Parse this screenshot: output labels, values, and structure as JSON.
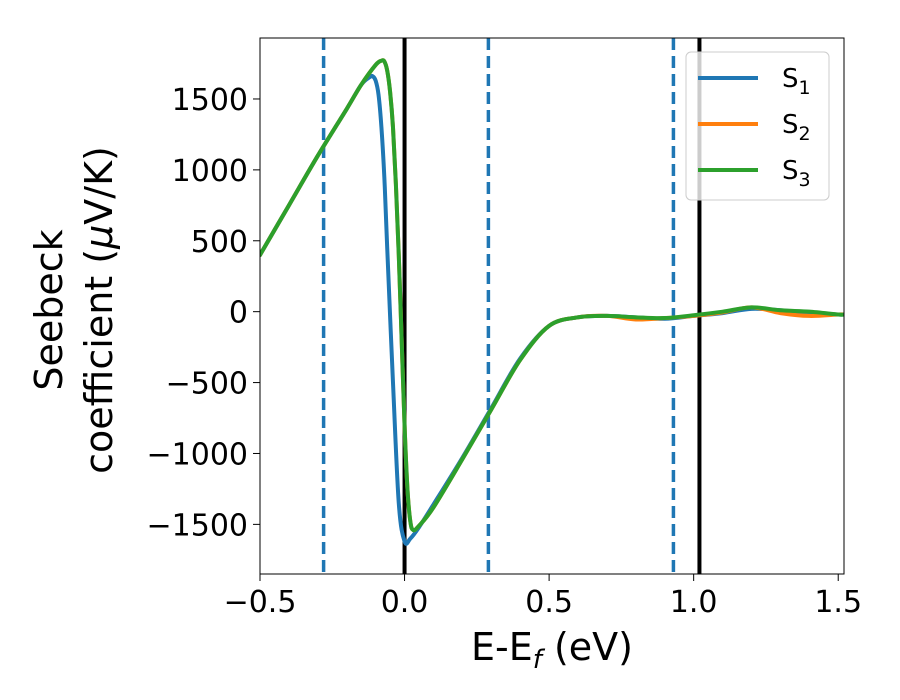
{
  "chart_data": {
    "type": "line",
    "xlabel": "E-E",
    "xlabel_sub": "f",
    "xlabel_suffix": " (eV)",
    "ylabel_line1": "Seebeck",
    "ylabel_line2": "coefficient  (",
    "ylabel_mu": "μ",
    "ylabel_unit": "V/K)",
    "xlim": [
      -0.5,
      1.52
    ],
    "ylim": [
      -1850,
      1930
    ],
    "xticks": [
      -0.5,
      0.0,
      0.5,
      1.0,
      1.5
    ],
    "xtick_labels": [
      "−0.5",
      "0.0",
      "0.5",
      "1.0",
      "1.5"
    ],
    "yticks": [
      -1500,
      -1000,
      -500,
      0,
      500,
      1000,
      1500
    ],
    "ytick_labels": [
      "−1500",
      "−1000",
      "−500",
      "0",
      "500",
      "1000",
      "1500"
    ],
    "grid": false,
    "legend_position": "top-right",
    "vlines_solid": [
      0.0,
      1.02
    ],
    "vlines_dashed": [
      -0.28,
      0.29,
      0.93
    ],
    "colors": {
      "solid_vline": "#000000",
      "dashed_vline": "#1f77b4"
    },
    "series": [
      {
        "name": "S",
        "sub": "1",
        "color": "#1f77b4",
        "x": [
          -0.5,
          -0.4,
          -0.3,
          -0.2,
          -0.15,
          -0.12,
          -0.11,
          -0.1,
          -0.09,
          -0.08,
          -0.07,
          -0.06,
          -0.04,
          -0.02,
          0.0,
          0.02,
          0.05,
          0.1,
          0.2,
          0.3,
          0.4,
          0.5,
          0.6,
          0.7,
          0.8,
          0.9,
          1.0,
          1.1,
          1.2,
          1.3,
          1.4,
          1.5,
          1.52
        ],
        "y": [
          400,
          750,
          1100,
          1430,
          1600,
          1655,
          1660,
          1630,
          1530,
          1300,
          950,
          450,
          -500,
          -1350,
          -1620,
          -1600,
          -1520,
          -1360,
          -1030,
          -680,
          -330,
          -100,
          -40,
          -30,
          -40,
          -50,
          -30,
          -10,
          20,
          10,
          -10,
          -20,
          -20
        ]
      },
      {
        "name": "S",
        "sub": "2",
        "color": "#ff7f0e",
        "x": [
          -0.5,
          -0.4,
          -0.3,
          -0.2,
          -0.15,
          -0.1,
          -0.08,
          -0.07,
          -0.06,
          -0.05,
          -0.04,
          -0.03,
          -0.02,
          -0.01,
          0.0,
          0.01,
          0.02,
          0.03,
          0.05,
          0.1,
          0.2,
          0.3,
          0.4,
          0.5,
          0.6,
          0.7,
          0.8,
          0.9,
          1.0,
          1.1,
          1.2,
          1.3,
          1.4,
          1.5,
          1.52
        ],
        "y": [
          400,
          750,
          1100,
          1430,
          1600,
          1740,
          1770,
          1765,
          1700,
          1550,
          1300,
          900,
          400,
          -200,
          -800,
          -1250,
          -1480,
          -1540,
          -1510,
          -1380,
          -1040,
          -690,
          -340,
          -100,
          -40,
          -30,
          -55,
          -45,
          -30,
          -5,
          30,
          -10,
          -30,
          -20,
          -20
        ]
      },
      {
        "name": "S",
        "sub": "3",
        "color": "#2ca02c",
        "x": [
          -0.5,
          -0.4,
          -0.3,
          -0.2,
          -0.15,
          -0.1,
          -0.08,
          -0.07,
          -0.06,
          -0.05,
          -0.04,
          -0.03,
          -0.02,
          -0.01,
          0.0,
          0.01,
          0.02,
          0.03,
          0.05,
          0.1,
          0.2,
          0.3,
          0.4,
          0.5,
          0.6,
          0.7,
          0.8,
          0.9,
          1.0,
          1.1,
          1.2,
          1.3,
          1.4,
          1.5,
          1.52
        ],
        "y": [
          400,
          750,
          1100,
          1430,
          1600,
          1740,
          1770,
          1765,
          1700,
          1550,
          1300,
          900,
          400,
          -200,
          -800,
          -1250,
          -1480,
          -1540,
          -1510,
          -1380,
          -1040,
          -690,
          -340,
          -100,
          -40,
          -30,
          -40,
          -45,
          -25,
          0,
          30,
          10,
          0,
          -20,
          -20
        ]
      }
    ]
  }
}
